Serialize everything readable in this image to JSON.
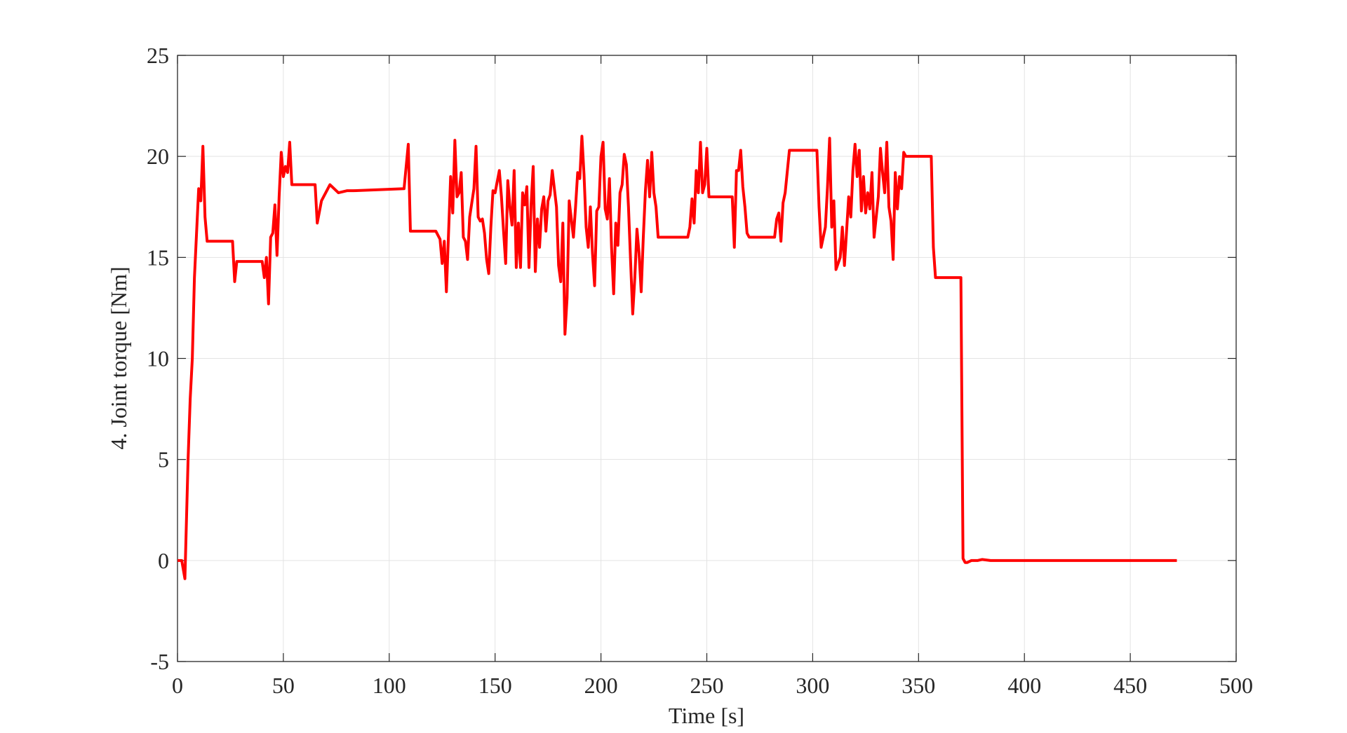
{
  "chart_data": {
    "type": "line",
    "x_label": "Time [s]",
    "y_label": "4. Joint torque [Nm]",
    "xlim": [
      0,
      500
    ],
    "xticks": [
      0,
      50,
      100,
      150,
      200,
      250,
      300,
      350,
      400,
      450,
      500
    ],
    "ylim": [
      -5,
      25
    ],
    "yticks": [
      -5,
      0,
      5,
      10,
      15,
      20,
      25
    ],
    "grid": true,
    "color": "#ff0000",
    "x": [
      0,
      2,
      3.5,
      5,
      6,
      7,
      8,
      10,
      11,
      12,
      13,
      14,
      26,
      27,
      28,
      40,
      41,
      42,
      43,
      44,
      45,
      46,
      47,
      48,
      49,
      50,
      51,
      52,
      53,
      54,
      65,
      66,
      68,
      72,
      76,
      80,
      83,
      107,
      109,
      110,
      122,
      124,
      125,
      126,
      127,
      129,
      130,
      131,
      132,
      133,
      134,
      135,
      136,
      137,
      138,
      140,
      141,
      142,
      143,
      144,
      145,
      146,
      147,
      148,
      149,
      150,
      152,
      153,
      154,
      155,
      156,
      157,
      158,
      159,
      160,
      161,
      162,
      163,
      164,
      165,
      166,
      167,
      168,
      169,
      170,
      171,
      172,
      173,
      174,
      175,
      176,
      177,
      178,
      179,
      180,
      181,
      182,
      183,
      184,
      185,
      187,
      188,
      189,
      190,
      191,
      192,
      193,
      194,
      195,
      196,
      197,
      198,
      199,
      200,
      201,
      202,
      203,
      204,
      205,
      206,
      207,
      208,
      209,
      210,
      211,
      212,
      213,
      214,
      215,
      216,
      217,
      218,
      219,
      220,
      221,
      222,
      223,
      224,
      225,
      226,
      227,
      241,
      242,
      243,
      244,
      245,
      246,
      247,
      248,
      249,
      250,
      251,
      262,
      263,
      264,
      265,
      266,
      267,
      268,
      269,
      270,
      282,
      283,
      284,
      285,
      286,
      287,
      289,
      302,
      303,
      304,
      306,
      307,
      308,
      309,
      310,
      311,
      313,
      314,
      315,
      317,
      318,
      319,
      320,
      321,
      322,
      323,
      324,
      325,
      326,
      327,
      328,
      329,
      331,
      332,
      333,
      334,
      335,
      336,
      337,
      338,
      339,
      340,
      341,
      342,
      343,
      344,
      356,
      357,
      358,
      370,
      371,
      372,
      373,
      375,
      378,
      380,
      384,
      400,
      420,
      440,
      472
    ],
    "values": [
      0,
      0,
      -0.9,
      5,
      8,
      10,
      14,
      18.4,
      17.8,
      20.5,
      17,
      15.8,
      15.8,
      13.8,
      14.8,
      14.8,
      14,
      15,
      12.7,
      16,
      16.2,
      17.6,
      15.1,
      18,
      20.2,
      19,
      19.5,
      19.2,
      20.7,
      18.6,
      18.6,
      16.7,
      17.8,
      18.6,
      18.2,
      18.3,
      18.3,
      18.4,
      20.6,
      16.3,
      16.3,
      15.9,
      14.7,
      15.8,
      13.3,
      19,
      17.2,
      20.8,
      18,
      18.2,
      19.2,
      16,
      15.8,
      14.9,
      17,
      18.4,
      20.5,
      17,
      16.8,
      16.9,
      16.2,
      14.9,
      14.2,
      16.5,
      18.3,
      18.2,
      19.3,
      18,
      16.3,
      14.7,
      18.8,
      17.5,
      16.6,
      19.3,
      14.5,
      16.7,
      14.5,
      18.2,
      17.6,
      18.5,
      14.5,
      17.6,
      19.5,
      14.3,
      16.9,
      15.5,
      17.4,
      18,
      16.3,
      17.8,
      18.1,
      19.3,
      18.4,
      17.5,
      14.6,
      13.8,
      16.7,
      11.2,
      13,
      17.8,
      16,
      17.5,
      19.2,
      18.9,
      21,
      19.1,
      16.5,
      15.5,
      17.5,
      15.2,
      13.6,
      17.3,
      17.5,
      20,
      20.7,
      17.4,
      16.9,
      18.9,
      15.5,
      13.2,
      16.7,
      15.6,
      18.2,
      18.6,
      20.1,
      19.6,
      17.5,
      14.8,
      12.2,
      14,
      16.4,
      15.2,
      13.3,
      16,
      18.3,
      19.8,
      18,
      20.2,
      18.2,
      17.5,
      16,
      16,
      16.5,
      17.9,
      16.7,
      19.3,
      18.2,
      20.7,
      18.2,
      18.6,
      20.4,
      18,
      18,
      15.5,
      19.3,
      19.3,
      20.3,
      18.5,
      17.5,
      16.2,
      16,
      16,
      16.9,
      17.2,
      15.8,
      17.7,
      18.2,
      20.3,
      20.3,
      17.5,
      15.5,
      16.5,
      18.5,
      20.9,
      16.5,
      17.8,
      14.4,
      15,
      16.5,
      14.6,
      18,
      17,
      19.3,
      20.6,
      19,
      20.3,
      17.3,
      19,
      17.2,
      18.2,
      17.4,
      19.2,
      16,
      18,
      20.4,
      19.2,
      18.2,
      20.7,
      17.5,
      16.8,
      14.9,
      19.2,
      17.4,
      19,
      18.4,
      20.2,
      20,
      20,
      15.5,
      14,
      14,
      0.1,
      -0.1,
      -0.1,
      0,
      0,
      0.05,
      0,
      0,
      0,
      0,
      0
    ]
  }
}
